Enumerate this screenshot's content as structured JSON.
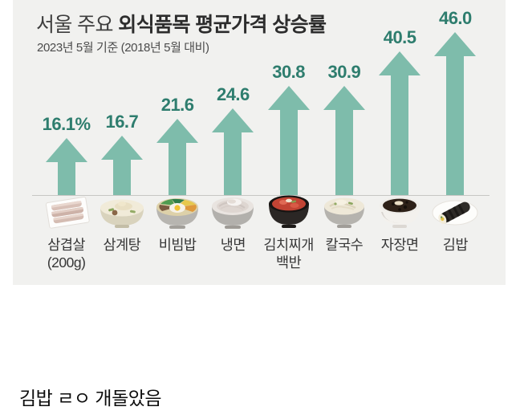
{
  "chart_data": {
    "type": "bar",
    "title": "서울 주요 외식품목 평균가격 상승률",
    "title_prefix": "서울 주요 ",
    "title_bold": "외식품목 평균가격 상승률",
    "subtitle": "2023년 5월 기준 (2018년 5월 대비)",
    "unit": "%",
    "ylim": [
      0,
      50
    ],
    "legend": "none",
    "grid": "off",
    "arrow_color": "#7ebcab",
    "value_color": "#2e7d6e",
    "categories": [
      "삼겹살 (200g)",
      "삼계탕",
      "비빔밥",
      "냉면",
      "김치찌개 백반",
      "칼국수",
      "자장면",
      "김밥"
    ],
    "values": [
      16.1,
      16.7,
      21.6,
      24.6,
      30.8,
      30.9,
      40.5,
      46.0
    ],
    "items": [
      {
        "name": "samgyeopsal",
        "label_line1": "삼겹살",
        "label_line2": "(200g)",
        "value": 16.1,
        "value_label": "16.1%",
        "icon": "pork-belly-icon"
      },
      {
        "name": "samgyetang",
        "label_line1": "삼계탕",
        "label_line2": "",
        "value": 16.7,
        "value_label": "16.7",
        "icon": "samgyetang-bowl-icon"
      },
      {
        "name": "bibimbap",
        "label_line1": "비빔밥",
        "label_line2": "",
        "value": 21.6,
        "value_label": "21.6",
        "icon": "bibimbap-bowl-icon"
      },
      {
        "name": "naengmyeon",
        "label_line1": "냉면",
        "label_line2": "",
        "value": 24.6,
        "value_label": "24.6",
        "icon": "naengmyeon-bowl-icon"
      },
      {
        "name": "kimchi-jjigae-baekban",
        "label_line1": "김치찌개",
        "label_line2": "백반",
        "value": 30.8,
        "value_label": "30.8",
        "icon": "kimchi-stew-pot-icon"
      },
      {
        "name": "kalguksu",
        "label_line1": "칼국수",
        "label_line2": "",
        "value": 30.9,
        "value_label": "30.9",
        "icon": "kalguksu-bowl-icon"
      },
      {
        "name": "jajangmyeon",
        "label_line1": "자장면",
        "label_line2": "",
        "value": 40.5,
        "value_label": "40.5",
        "icon": "jajangmyeon-bowl-icon"
      },
      {
        "name": "gimbap",
        "label_line1": "김밥",
        "label_line2": "",
        "value": 46.0,
        "value_label": "46.0",
        "icon": "gimbap-roll-icon"
      }
    ]
  },
  "caption": "김밥 ㄹㅇ 개돌았음"
}
